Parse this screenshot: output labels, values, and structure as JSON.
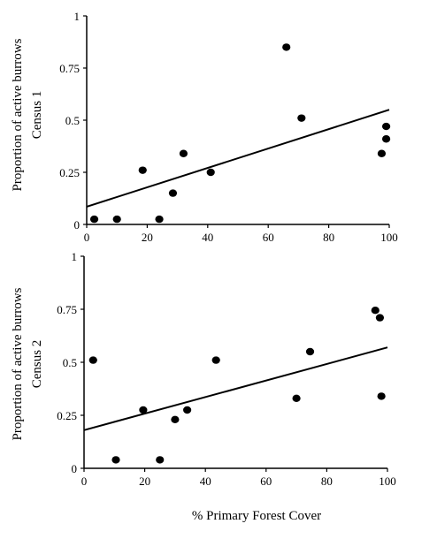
{
  "xlabel": "% Primary Forest Cover",
  "chart_data": [
    {
      "type": "scatter",
      "ylabel": "Proportion of active burrows",
      "ylabel2": "Census 1",
      "xlabel": "",
      "xlim": [
        0,
        100
      ],
      "ylim": [
        0,
        1
      ],
      "xticks": [
        "0",
        "20",
        "40",
        "60",
        "80",
        "100"
      ],
      "yticks": [
        "0",
        "0.25",
        "0.5",
        "0.75",
        "1"
      ],
      "grid": false,
      "points": [
        {
          "x": 2.5,
          "y": 0.025
        },
        {
          "x": 10,
          "y": 0.025
        },
        {
          "x": 18.5,
          "y": 0.26
        },
        {
          "x": 24,
          "y": 0.025
        },
        {
          "x": 28.5,
          "y": 0.15
        },
        {
          "x": 32,
          "y": 0.34
        },
        {
          "x": 41,
          "y": 0.25
        },
        {
          "x": 66,
          "y": 0.85
        },
        {
          "x": 71,
          "y": 0.51
        },
        {
          "x": 97.5,
          "y": 0.34
        },
        {
          "x": 99,
          "y": 0.47
        },
        {
          "x": 99,
          "y": 0.41
        }
      ],
      "trendline": {
        "x": [
          0,
          100
        ],
        "y": [
          0.085,
          0.55
        ]
      }
    },
    {
      "type": "scatter",
      "ylabel": "Proportion of active burrows",
      "ylabel2": "Census 2",
      "xlabel": "% Primary Forest Cover",
      "xlim": [
        0,
        100
      ],
      "ylim": [
        0,
        1
      ],
      "xticks": [
        "0",
        "20",
        "40",
        "60",
        "80",
        "100"
      ],
      "yticks": [
        "0",
        "0.25",
        "0.5",
        "0.75",
        "1"
      ],
      "grid": false,
      "points": [
        {
          "x": 3,
          "y": 0.51
        },
        {
          "x": 10.5,
          "y": 0.04
        },
        {
          "x": 19.5,
          "y": 0.275
        },
        {
          "x": 25,
          "y": 0.04
        },
        {
          "x": 30,
          "y": 0.23
        },
        {
          "x": 34,
          "y": 0.275
        },
        {
          "x": 43.5,
          "y": 0.51
        },
        {
          "x": 70,
          "y": 0.33
        },
        {
          "x": 74.5,
          "y": 0.55
        },
        {
          "x": 96,
          "y": 0.745
        },
        {
          "x": 97.5,
          "y": 0.71
        },
        {
          "x": 98,
          "y": 0.34
        }
      ],
      "trendline": {
        "x": [
          0,
          100
        ],
        "y": [
          0.18,
          0.57
        ]
      }
    }
  ]
}
